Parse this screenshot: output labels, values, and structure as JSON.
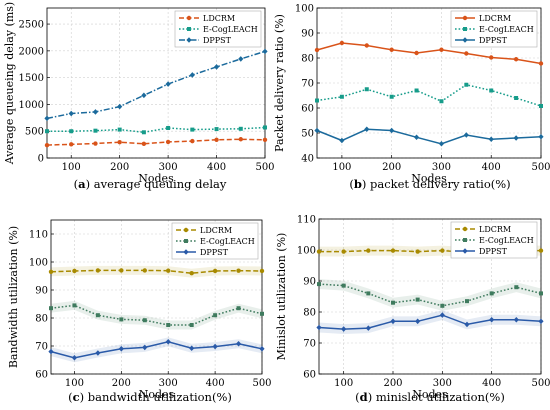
{
  "chart_data": [
    {
      "type": "line",
      "panel_label": "a",
      "caption": "average queuing delay",
      "xlabel": "Nodes",
      "ylabel": "Average queueing delay (ms)",
      "xlim": [
        50,
        500
      ],
      "ylim": [
        0,
        2800
      ],
      "xticks": [
        100,
        200,
        300,
        400,
        500
      ],
      "yticks": [
        0,
        500,
        1000,
        1500,
        2000,
        2500
      ],
      "grid": true,
      "legend": "top-right",
      "x": [
        50,
        100,
        150,
        200,
        250,
        300,
        350,
        400,
        450,
        500
      ],
      "series": [
        {
          "name": "LDCRM",
          "color": "#d95319",
          "marker": "circle",
          "dash": "dashed",
          "values": [
            240,
            255,
            270,
            295,
            265,
            300,
            315,
            340,
            350,
            340
          ]
        },
        {
          "name": "E-CogLEACH",
          "color": "#169c8a",
          "marker": "square",
          "dash": "dotted",
          "values": [
            500,
            500,
            510,
            530,
            480,
            560,
            530,
            540,
            545,
            570
          ]
        },
        {
          "name": "DPPST",
          "color": "#1b6a9c",
          "marker": "diamond",
          "dash": "dashdot",
          "values": [
            740,
            830,
            860,
            960,
            1170,
            1380,
            1550,
            1700,
            1850,
            1990
          ]
        }
      ]
    },
    {
      "type": "line",
      "panel_label": "b",
      "caption": "packet delivery ratio(%)",
      "xlabel": "Nodes",
      "ylabel": "Packet delivery ratio (%)",
      "xlim": [
        50,
        500
      ],
      "ylim": [
        40,
        100
      ],
      "xticks": [
        100,
        200,
        300,
        400,
        500
      ],
      "yticks": [
        40,
        50,
        60,
        70,
        80,
        90,
        100
      ],
      "grid": true,
      "legend": "top-right",
      "x": [
        50,
        100,
        150,
        200,
        250,
        300,
        350,
        400,
        450,
        500
      ],
      "series": [
        {
          "name": "LDCRM",
          "color": "#d95319",
          "marker": "circle",
          "dash": "solid",
          "values": [
            83.2,
            86,
            85,
            83.3,
            82,
            83.3,
            81.8,
            80.2,
            79.5,
            77.8
          ]
        },
        {
          "name": "E-CogLEACH",
          "color": "#169c8a",
          "marker": "square",
          "dash": "dotted",
          "values": [
            63,
            64.5,
            67.5,
            64.5,
            67,
            62.7,
            69.3,
            67,
            64,
            60.8
          ]
        },
        {
          "name": "DPPST",
          "color": "#1b6a9c",
          "marker": "diamond",
          "dash": "solid",
          "values": [
            51,
            47,
            51.5,
            51,
            48.3,
            45.7,
            49.2,
            47.5,
            48,
            48.5
          ]
        }
      ]
    },
    {
      "type": "line",
      "panel_label": "c",
      "caption": "bandwidth utilization(%)",
      "xlabel": "Nodes",
      "ylabel": "Bandwidth utilization (%)",
      "xlim": [
        50,
        500
      ],
      "ylim": [
        60,
        115
      ],
      "xticks": [
        100,
        200,
        300,
        400,
        500
      ],
      "yticks": [
        60,
        70,
        80,
        90,
        100,
        110
      ],
      "grid": true,
      "legend": "top-right",
      "x": [
        50,
        100,
        150,
        200,
        250,
        300,
        350,
        400,
        450,
        500
      ],
      "series": [
        {
          "name": "LDCRM",
          "color": "#a88a00",
          "marker": "circle",
          "dash": "dashed",
          "values": [
            96.5,
            96.8,
            97,
            97,
            97,
            96.9,
            96,
            96.8,
            96.9,
            96.8
          ]
        },
        {
          "name": "E-CogLEACH",
          "color": "#3f7b5e",
          "marker": "square",
          "dash": "dotted",
          "values": [
            83.5,
            84.5,
            81,
            79.5,
            79.2,
            77.5,
            77.5,
            81,
            83.5,
            81.5
          ]
        },
        {
          "name": "DPPST",
          "color": "#2a5aa8",
          "marker": "diamond",
          "dash": "solid",
          "values": [
            68,
            65.8,
            67.5,
            69,
            69.5,
            71.5,
            69.2,
            69.8,
            70.8,
            69
          ]
        }
      ]
    },
    {
      "type": "line",
      "panel_label": "d",
      "caption": "minislot utilization(%)",
      "xlabel": "Nodes",
      "ylabel": "Minislot utilization (%)",
      "xlim": [
        50,
        500
      ],
      "ylim": [
        60,
        110
      ],
      "xticks": [
        100,
        200,
        300,
        400,
        500
      ],
      "yticks": [
        60,
        70,
        80,
        90,
        100,
        110
      ],
      "grid": true,
      "legend": "top-right",
      "x": [
        50,
        100,
        150,
        200,
        250,
        300,
        350,
        400,
        450,
        500
      ],
      "series": [
        {
          "name": "LDCRM",
          "color": "#a88a00",
          "marker": "circle",
          "dash": "dashed",
          "values": [
            99.5,
            99.5,
            99.8,
            99.8,
            99.5,
            99.8,
            99.3,
            99.6,
            99.8,
            99.8
          ]
        },
        {
          "name": "E-CogLEACH",
          "color": "#3f7b5e",
          "marker": "square",
          "dash": "dotted",
          "values": [
            89,
            88.5,
            86,
            83,
            84,
            82,
            83.5,
            86,
            88,
            86
          ]
        },
        {
          "name": "DPPST",
          "color": "#2a5aa8",
          "marker": "diamond",
          "dash": "solid",
          "values": [
            75,
            74.5,
            74.8,
            77,
            77,
            79,
            76,
            77.5,
            77.5,
            77
          ]
        }
      ]
    }
  ]
}
